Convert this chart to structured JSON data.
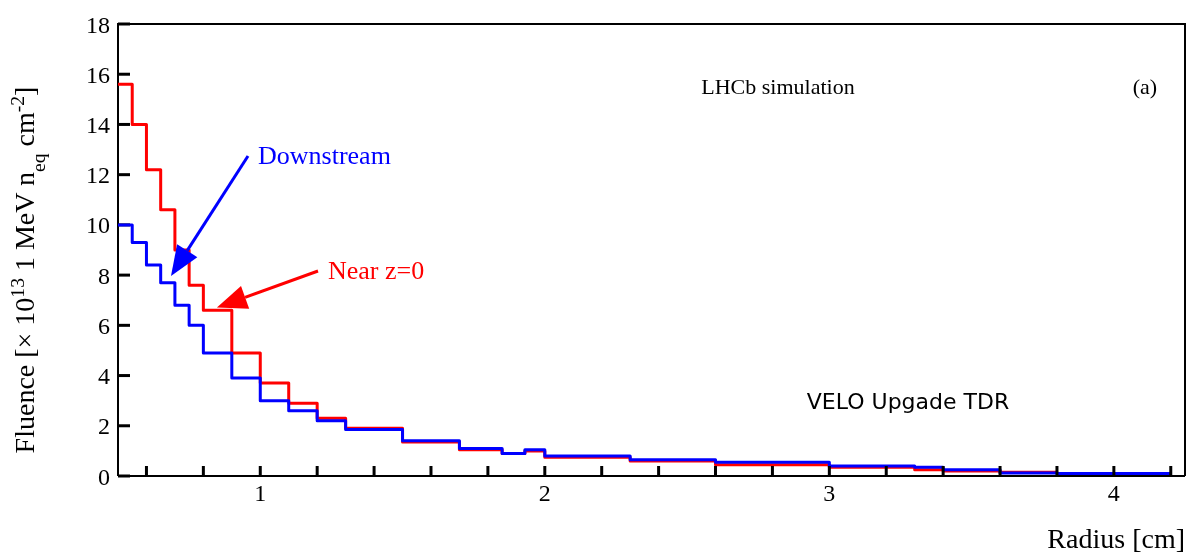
{
  "chart_data": {
    "type": "step",
    "xlabel": "Radius [cm]",
    "ylabel": "Fluence [× 10$^{13}$ 1 MeV n$_{eq}$ cm$^{-2}$]",
    "x": [
      0.5,
      0.55,
      0.6,
      0.65,
      0.7,
      0.75,
      0.8,
      0.9,
      1.0,
      1.1,
      1.2,
      1.3,
      1.5,
      1.7,
      1.85,
      1.93,
      2.0,
      2.3,
      2.6,
      3.0,
      3.3,
      3.4,
      3.6,
      3.8,
      4.2
    ],
    "series": [
      {
        "name": "Near z=0",
        "color": "#ff0000",
        "values": [
          15.6,
          14.0,
          12.2,
          10.6,
          9.0,
          7.6,
          6.6,
          4.9,
          3.7,
          2.9,
          2.3,
          1.9,
          1.35,
          1.05,
          0.9,
          1.0,
          0.75,
          0.6,
          0.45,
          0.35,
          0.25,
          0.2,
          0.15,
          0.1,
          null
        ]
      },
      {
        "name": "Downstream",
        "color": "#0000ff",
        "values": [
          10.0,
          9.3,
          8.4,
          7.7,
          6.8,
          6.0,
          4.9,
          3.9,
          3.0,
          2.6,
          2.2,
          1.85,
          1.4,
          1.1,
          0.9,
          1.05,
          0.8,
          0.65,
          0.55,
          0.4,
          0.35,
          0.25,
          0.12,
          0.1,
          0.1
        ]
      }
    ],
    "xlim": [
      0.5,
      4.25
    ],
    "xticks": [
      {
        "value": 0.6,
        "label": null
      },
      {
        "value": 0.8,
        "label": null
      },
      1,
      {
        "value": 1.2,
        "label": null
      },
      {
        "value": 1.4,
        "label": null
      },
      {
        "value": 1.6,
        "label": null
      },
      {
        "value": 1.8,
        "label": null
      },
      2,
      {
        "value": 2.2,
        "label": null
      },
      {
        "value": 2.4,
        "label": null
      },
      {
        "value": 2.6,
        "label": null
      },
      {
        "value": 2.8,
        "label": null
      },
      3,
      {
        "value": 3.2,
        "label": null
      },
      {
        "value": 3.4,
        "label": null
      },
      {
        "value": 3.6,
        "label": null
      },
      {
        "value": 3.8,
        "label": null
      },
      4,
      {
        "value": 4.2,
        "label": null
      }
    ],
    "ylim": [
      0,
      18
    ],
    "yticks": [
      0,
      2,
      4,
      6,
      8,
      10,
      12,
      14,
      16,
      18
    ],
    "annotations": [
      "LHCb simulation",
      "(a)",
      "VELO Upgade TDR"
    ],
    "legend": "left",
    "line_style": "solid",
    "marker": "none"
  }
}
